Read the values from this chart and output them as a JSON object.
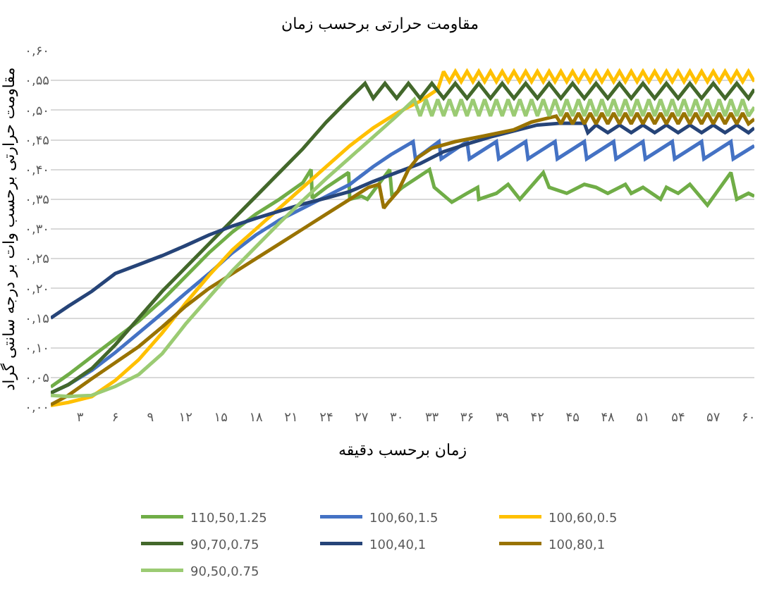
{
  "chart_data": {
    "type": "line",
    "title": "مقاومت حرارتی برحسب زمان",
    "xlabel": "زمان برحسب دقیقه",
    "ylabel": "مقاومت حرارتی برحسب وات بر درجه سانتی گراد",
    "xlim": [
      0.5,
      60.5
    ],
    "ylim": [
      0,
      0.6
    ],
    "xticks": [
      {
        "value": 3,
        "label": "۳"
      },
      {
        "value": 6,
        "label": "۶"
      },
      {
        "value": 9,
        "label": "۹"
      },
      {
        "value": 12,
        "label": "۱۲"
      },
      {
        "value": 15,
        "label": "۱۵"
      },
      {
        "value": 18,
        "label": "۱۸"
      },
      {
        "value": 21,
        "label": "۲۱"
      },
      {
        "value": 24,
        "label": "۲۴"
      },
      {
        "value": 27,
        "label": "۲۷"
      },
      {
        "value": 30,
        "label": "۳۰"
      },
      {
        "value": 33,
        "label": "۳۳"
      },
      {
        "value": 36,
        "label": "۳۶"
      },
      {
        "value": 39,
        "label": "۳۹"
      },
      {
        "value": 42,
        "label": "۴۲"
      },
      {
        "value": 45,
        "label": "۴۵"
      },
      {
        "value": 48,
        "label": "۴۸"
      },
      {
        "value": 51,
        "label": "۵۱"
      },
      {
        "value": 54,
        "label": "۵۴"
      },
      {
        "value": 57,
        "label": "۵۷"
      },
      {
        "value": 60,
        "label": "۶۰"
      }
    ],
    "yticks": [
      {
        "value": 0,
        "label": "۰,۰۰"
      },
      {
        "value": 0.05,
        "label": "۰,۰۵"
      },
      {
        "value": 0.1,
        "label": "۰,۱۰"
      },
      {
        "value": 0.15,
        "label": "۰,۱۵"
      },
      {
        "value": 0.2,
        "label": "۰,۲۰"
      },
      {
        "value": 0.25,
        "label": "۰,۲۵"
      },
      {
        "value": 0.3,
        "label": "۰,۳۰"
      },
      {
        "value": 0.35,
        "label": "۰,۳۵"
      },
      {
        "value": 0.4,
        "label": "۰,۴۰"
      },
      {
        "value": 0.45,
        "label": "۰,۴۵"
      },
      {
        "value": 0.5,
        "label": "۰,۵۰"
      },
      {
        "value": 0.55,
        "label": "۰,۵۵"
      },
      {
        "value": 0.6,
        "label": "۰,۶۰"
      }
    ],
    "grid": "y",
    "legend": "bottom",
    "series": [
      {
        "name": "110,50,1.25",
        "color": "#70ad47",
        "x": [
          0.5,
          2,
          4,
          6,
          8,
          10,
          12,
          14,
          16,
          18,
          20,
          22,
          22.7,
          22.8,
          24,
          25.9,
          26,
          27,
          27.5,
          29.4,
          29.6,
          30.5,
          32.8,
          33.2,
          34.7,
          36,
          36.9,
          37,
          38.5,
          39.5,
          40.5,
          42.5,
          43,
          44.5,
          46,
          47,
          48,
          49.5,
          50,
          51,
          52.5,
          53,
          54,
          55,
          56.5,
          58.5,
          59,
          60,
          60.5
        ],
        "values": [
          0.034,
          0.055,
          0.085,
          0.115,
          0.145,
          0.18,
          0.22,
          0.26,
          0.295,
          0.325,
          0.35,
          0.378,
          0.4,
          0.352,
          0.37,
          0.395,
          0.35,
          0.355,
          0.35,
          0.4,
          0.355,
          0.37,
          0.4,
          0.37,
          0.345,
          0.36,
          0.37,
          0.35,
          0.36,
          0.375,
          0.35,
          0.395,
          0.37,
          0.36,
          0.375,
          0.37,
          0.36,
          0.375,
          0.36,
          0.37,
          0.35,
          0.37,
          0.36,
          0.375,
          0.34,
          0.395,
          0.35,
          0.36,
          0.355
        ]
      },
      {
        "name": "100,60,1.5",
        "color": "#4472c4",
        "x": [
          0.5,
          2,
          4,
          6,
          8,
          10,
          12,
          14,
          16,
          18,
          20,
          22,
          24,
          26,
          28,
          29.5,
          31.4,
          31.6,
          33.6,
          33.8,
          36,
          36.2,
          38.5,
          38.7,
          41,
          41.2,
          43.5,
          43.7,
          46,
          46.2,
          48.5,
          48.7,
          51,
          51.2,
          53.5,
          53.7,
          56,
          56.2,
          58.5,
          58.7,
          60.5
        ],
        "values": [
          0.024,
          0.038,
          0.062,
          0.092,
          0.125,
          0.158,
          0.192,
          0.225,
          0.26,
          0.29,
          0.315,
          0.335,
          0.355,
          0.375,
          0.405,
          0.425,
          0.447,
          0.418,
          0.447,
          0.418,
          0.447,
          0.418,
          0.447,
          0.418,
          0.447,
          0.418,
          0.447,
          0.418,
          0.447,
          0.418,
          0.447,
          0.418,
          0.447,
          0.418,
          0.447,
          0.418,
          0.447,
          0.418,
          0.447,
          0.418,
          0.44
        ]
      },
      {
        "name": "100,60,0.5",
        "color": "#ffc000",
        "x": [
          0.5,
          2,
          4,
          6,
          8,
          10,
          12,
          14,
          16,
          18,
          20,
          22,
          24,
          26,
          28,
          30,
          32,
          33.5,
          34,
          34.5,
          35,
          35.5,
          36,
          36.5,
          37,
          37.5,
          38,
          38.5,
          39,
          39.5,
          40,
          40.5,
          41,
          41.5,
          42,
          42.5,
          43,
          43.5,
          44,
          44.5,
          45,
          45.5,
          46,
          46.5,
          47,
          47.5,
          48,
          48.5,
          49,
          49.5,
          50,
          50.5,
          51,
          51.5,
          52,
          52.5,
          53,
          53.5,
          54,
          54.5,
          55,
          55.5,
          56,
          56.5,
          57,
          57.5,
          58,
          58.5,
          59,
          59.5,
          60,
          60.5
        ],
        "values": [
          0.003,
          0.008,
          0.018,
          0.045,
          0.08,
          0.125,
          0.175,
          0.222,
          0.265,
          0.3,
          0.335,
          0.37,
          0.405,
          0.44,
          0.47,
          0.495,
          0.515,
          0.535,
          0.565,
          0.548,
          0.565,
          0.548,
          0.565,
          0.548,
          0.565,
          0.548,
          0.565,
          0.548,
          0.565,
          0.548,
          0.565,
          0.548,
          0.565,
          0.548,
          0.565,
          0.548,
          0.565,
          0.548,
          0.565,
          0.548,
          0.565,
          0.548,
          0.565,
          0.548,
          0.565,
          0.548,
          0.565,
          0.548,
          0.565,
          0.548,
          0.565,
          0.548,
          0.565,
          0.548,
          0.565,
          0.548,
          0.565,
          0.548,
          0.565,
          0.548,
          0.565,
          0.548,
          0.565,
          0.548,
          0.565,
          0.548,
          0.565,
          0.548,
          0.565,
          0.548,
          0.565,
          0.548
        ]
      },
      {
        "name": "90,70,0.75",
        "color": "#43682b",
        "x": [
          0.5,
          2,
          4,
          6,
          8,
          10,
          12,
          14,
          16,
          18,
          20,
          22,
          24,
          26,
          27.3,
          28,
          29,
          30,
          31,
          32,
          33,
          34,
          35,
          36,
          37,
          38,
          39,
          40,
          41,
          42,
          43,
          44,
          45,
          46,
          47,
          48,
          49,
          50,
          51,
          52,
          53,
          54,
          55,
          56,
          57,
          58,
          59,
          60,
          60.5
        ],
        "values": [
          0.024,
          0.038,
          0.065,
          0.105,
          0.15,
          0.195,
          0.235,
          0.275,
          0.315,
          0.355,
          0.395,
          0.435,
          0.48,
          0.52,
          0.545,
          0.52,
          0.545,
          0.52,
          0.545,
          0.52,
          0.545,
          0.52,
          0.545,
          0.52,
          0.545,
          0.52,
          0.545,
          0.52,
          0.545,
          0.52,
          0.545,
          0.52,
          0.545,
          0.52,
          0.545,
          0.52,
          0.545,
          0.52,
          0.545,
          0.52,
          0.545,
          0.52,
          0.545,
          0.52,
          0.545,
          0.52,
          0.545,
          0.52,
          0.535
        ]
      },
      {
        "name": "100,40,1",
        "color": "#264478",
        "x": [
          0.5,
          2,
          4,
          6,
          8,
          10,
          12,
          14,
          16,
          18,
          20,
          22,
          24,
          26,
          28,
          30,
          32,
          34,
          36,
          38,
          40,
          42,
          44,
          46,
          46.3,
          47,
          48,
          49,
          50,
          51,
          52,
          53,
          54,
          55,
          56,
          57,
          58,
          59,
          60,
          60.5
        ],
        "values": [
          0.15,
          0.17,
          0.195,
          0.225,
          0.24,
          0.255,
          0.272,
          0.29,
          0.305,
          0.318,
          0.33,
          0.342,
          0.352,
          0.363,
          0.38,
          0.395,
          0.41,
          0.43,
          0.443,
          0.455,
          0.465,
          0.475,
          0.478,
          0.478,
          0.462,
          0.475,
          0.462,
          0.475,
          0.462,
          0.475,
          0.462,
          0.475,
          0.462,
          0.475,
          0.462,
          0.475,
          0.462,
          0.475,
          0.462,
          0.47
        ]
      },
      {
        "name": "100,80,1",
        "color": "#997300",
        "x": [
          0.5,
          2,
          4,
          6,
          8,
          10,
          12,
          14,
          16,
          18,
          20,
          22,
          24,
          26,
          27.6,
          28.5,
          28.9,
          29.3,
          30.1,
          31,
          31.8,
          33,
          35,
          37.3,
          40,
          41.5,
          43.6,
          44,
          44.5,
          45,
          45.5,
          46,
          46.5,
          47,
          47.5,
          48,
          48.5,
          49,
          49.5,
          50,
          50.5,
          51,
          51.5,
          52,
          52.5,
          53,
          53.5,
          54,
          54.5,
          55,
          55.5,
          56,
          56.5,
          57,
          57.5,
          58,
          58.5,
          59,
          59.5,
          60,
          60.5
        ],
        "values": [
          0.004,
          0.02,
          0.048,
          0.075,
          0.102,
          0.135,
          0.17,
          0.2,
          0.225,
          0.25,
          0.275,
          0.3,
          0.325,
          0.35,
          0.37,
          0.375,
          0.335,
          0.345,
          0.363,
          0.4,
          0.42,
          0.436,
          0.447,
          0.456,
          0.467,
          0.48,
          0.49,
          0.477,
          0.495,
          0.477,
          0.495,
          0.477,
          0.495,
          0.477,
          0.495,
          0.477,
          0.495,
          0.477,
          0.495,
          0.477,
          0.495,
          0.477,
          0.495,
          0.477,
          0.495,
          0.477,
          0.495,
          0.477,
          0.495,
          0.477,
          0.495,
          0.477,
          0.495,
          0.477,
          0.495,
          0.477,
          0.495,
          0.477,
          0.495,
          0.477,
          0.485
        ]
      },
      {
        "name": "90,50,0.75",
        "color": "#9bcb73",
        "x": [
          0.5,
          2,
          4,
          6,
          8,
          10,
          12,
          14,
          16,
          18,
          20,
          22,
          24,
          26,
          28,
          30,
          31.5,
          32,
          32.5,
          33,
          33.5,
          34,
          34.5,
          35,
          35.5,
          36,
          36.5,
          37,
          37.5,
          38,
          38.5,
          39,
          39.5,
          40,
          40.5,
          41,
          41.5,
          42,
          42.5,
          43,
          43.5,
          44,
          44.5,
          45,
          45.5,
          46,
          46.5,
          47,
          47.5,
          48,
          48.5,
          49,
          49.5,
          50,
          50.5,
          51,
          51.5,
          52,
          52.5,
          53,
          53.5,
          54,
          54.5,
          55,
          55.5,
          56,
          56.5,
          57,
          57.5,
          58,
          58.5,
          59,
          59.5,
          60,
          60.5
        ],
        "values": [
          0.02,
          0.018,
          0.02,
          0.035,
          0.055,
          0.09,
          0.14,
          0.185,
          0.23,
          0.27,
          0.31,
          0.348,
          0.385,
          0.42,
          0.455,
          0.49,
          0.518,
          0.49,
          0.518,
          0.49,
          0.518,
          0.49,
          0.518,
          0.49,
          0.518,
          0.49,
          0.518,
          0.49,
          0.518,
          0.49,
          0.518,
          0.49,
          0.518,
          0.49,
          0.518,
          0.49,
          0.518,
          0.49,
          0.518,
          0.49,
          0.518,
          0.49,
          0.518,
          0.49,
          0.518,
          0.49,
          0.518,
          0.49,
          0.518,
          0.49,
          0.518,
          0.49,
          0.518,
          0.49,
          0.518,
          0.49,
          0.518,
          0.49,
          0.518,
          0.49,
          0.518,
          0.49,
          0.518,
          0.49,
          0.518,
          0.49,
          0.518,
          0.49,
          0.518,
          0.49,
          0.518,
          0.49,
          0.518,
          0.49,
          0.505
        ]
      }
    ]
  }
}
